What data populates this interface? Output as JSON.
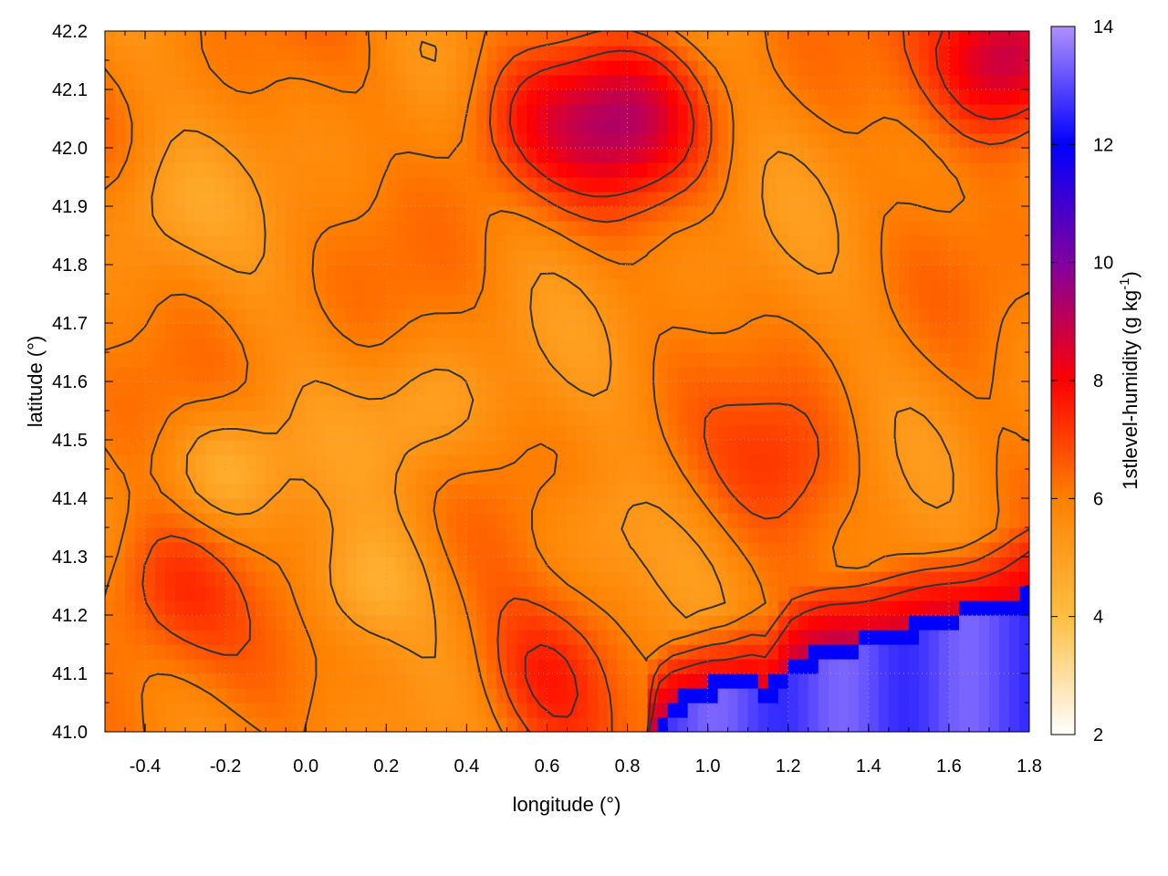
{
  "chart_data": {
    "type": "heatmap",
    "xlabel": "longitude (°)",
    "ylabel": "latitude (°)",
    "colorbar_label": {
      "text": "1stlevel-humidity (g kg",
      "sup": "-1",
      "close": ")"
    },
    "xlim": [
      -0.5,
      1.8
    ],
    "ylim": [
      41.0,
      42.2
    ],
    "x_ticks": [
      -0.4,
      -0.2,
      0.0,
      0.2,
      0.4,
      0.6,
      0.8,
      1.0,
      1.2,
      1.4,
      1.6,
      1.8
    ],
    "x_tick_labels": [
      "-0.4",
      "-0.2",
      "0.0",
      "0.2",
      "0.4",
      "0.6",
      "0.8",
      "1.0",
      "1.2",
      "1.4",
      "1.6",
      "1.8"
    ],
    "y_ticks": [
      41.0,
      41.1,
      41.2,
      41.3,
      41.4,
      41.5,
      41.6,
      41.7,
      41.8,
      41.9,
      42.0,
      42.1,
      42.2
    ],
    "y_tick_labels": [
      "41.0",
      "41.1",
      "41.2",
      "41.3",
      "41.4",
      "41.5",
      "41.6",
      "41.7",
      "41.8",
      "41.9",
      "42.0",
      "42.1",
      "42.2"
    ],
    "color_range": [
      2,
      14
    ],
    "colorbar_ticks": [
      2,
      4,
      6,
      8,
      10,
      12,
      14
    ],
    "colorbar_tick_labels": [
      "2",
      "4",
      "6",
      "8",
      "10",
      "12",
      "14"
    ],
    "colormap": [
      {
        "value": 2,
        "color": "#ffffff"
      },
      {
        "value": 4,
        "color": "#ffbf40"
      },
      {
        "value": 6,
        "color": "#ff8000"
      },
      {
        "value": 8,
        "color": "#ff0000"
      },
      {
        "value": 10,
        "color": "#8000a0"
      },
      {
        "value": 12,
        "color": "#0000ff"
      },
      {
        "value": 14,
        "color": "#b090ff"
      }
    ],
    "grid": true,
    "grid_color": "#c8a080",
    "contour_color": "#333333",
    "sea_boundary": [
      [
        0.85,
        41.0
      ],
      [
        0.9,
        41.05
      ],
      [
        1.0,
        41.09
      ],
      [
        1.1,
        41.1
      ],
      [
        1.15,
        41.08
      ],
      [
        1.2,
        41.12
      ],
      [
        1.3,
        41.15
      ],
      [
        1.4,
        41.17
      ],
      [
        1.5,
        41.19
      ],
      [
        1.6,
        41.21
      ],
      [
        1.7,
        41.23
      ],
      [
        1.8,
        41.24
      ]
    ],
    "humid_cores": [
      {
        "x": 0.8,
        "y": 42.05,
        "value": 8.5
      },
      {
        "x": 1.75,
        "y": 42.15,
        "value": 9.5
      },
      {
        "x": -0.35,
        "y": 41.25,
        "value": 7.5
      },
      {
        "x": 0.6,
        "y": 41.1,
        "value": 7.5
      },
      {
        "x": 1.2,
        "y": 41.45,
        "value": 7.0
      },
      {
        "x": 0.55,
        "y": 42.05,
        "value": 7.5
      }
    ],
    "dry_cores": [
      {
        "x": 0.15,
        "y": 41.25,
        "value": 4.5
      },
      {
        "x": -0.2,
        "y": 41.45,
        "value": 4.5
      },
      {
        "x": 0.3,
        "y": 41.55,
        "value": 5.0
      },
      {
        "x": -0.35,
        "y": 41.9,
        "value": 5.2
      },
      {
        "x": 0.7,
        "y": 41.35,
        "value": 5.2
      }
    ]
  }
}
